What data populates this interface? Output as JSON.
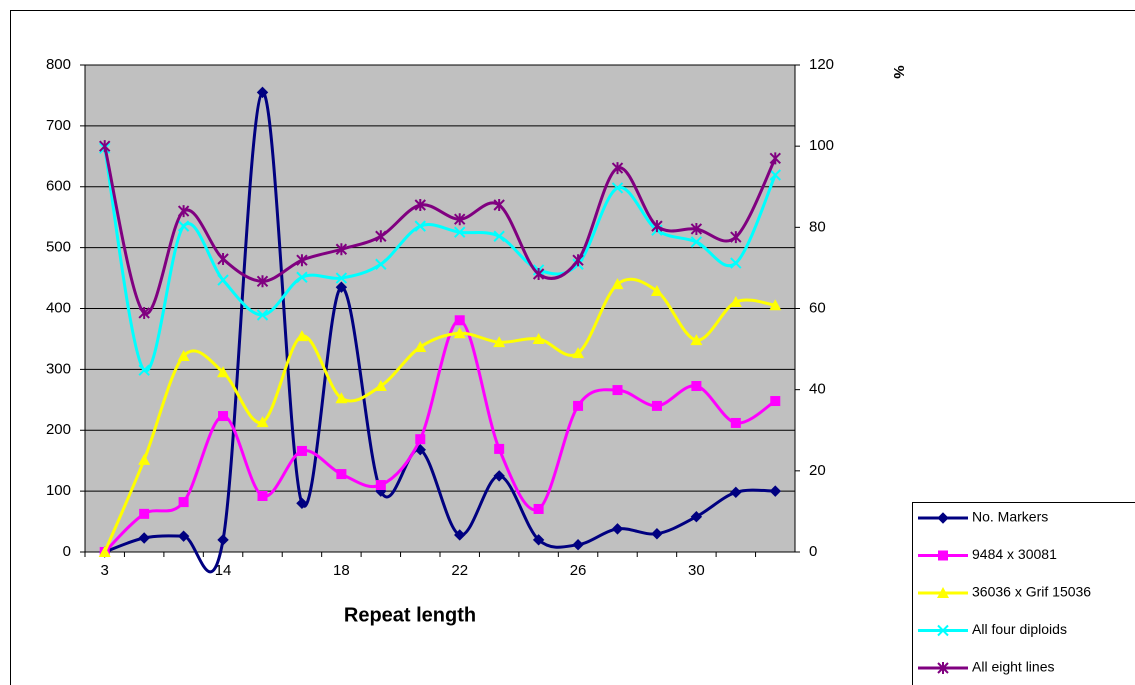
{
  "chart_data": {
    "type": "line",
    "xlabel": "Repeat length",
    "y2label": "%",
    "categories": [
      "3",
      null,
      null,
      "14",
      null,
      null,
      "18",
      null,
      null,
      "22",
      null,
      null,
      "26",
      null,
      null,
      "30",
      null,
      null
    ],
    "ylim": [
      0,
      800
    ],
    "yticks": [
      0,
      100,
      200,
      300,
      400,
      500,
      600,
      700,
      800
    ],
    "y2lim": [
      0,
      120
    ],
    "y2ticks": [
      0,
      20,
      40,
      60,
      80,
      100,
      120
    ],
    "grid": true,
    "legend": "bottom-right",
    "series": [
      {
        "name": "No. Markers",
        "color": "#000080",
        "marker": "diamond",
        "axis": "y",
        "values": [
          0,
          23,
          26,
          20,
          755,
          80,
          435,
          100,
          168,
          28,
          125,
          20,
          12,
          38,
          30,
          58,
          98,
          100
        ]
      },
      {
        "name": "9484 x 30081",
        "color": "#ff00ff",
        "marker": "square",
        "axis": "y2",
        "values": [
          0,
          9.4,
          12.3,
          33.5,
          13.8,
          24.9,
          19.2,
          16.5,
          27.8,
          57.1,
          25.4,
          10.6,
          36,
          39.9,
          36,
          40.9,
          31.8,
          37.2
        ]
      },
      {
        "name": "36036 x Grif 15036",
        "color": "#ffff00",
        "marker": "triangle",
        "axis": "y2",
        "values": [
          0,
          22.7,
          48.3,
          44.3,
          32,
          53.2,
          37.9,
          40.9,
          50.5,
          53.9,
          51.7,
          52.5,
          49,
          66,
          64.3,
          52.2,
          61.6,
          60.8
        ]
      },
      {
        "name": "All four diploids",
        "color": "#00ffff",
        "marker": "x",
        "axis": "y2",
        "values": [
          99.5,
          44.8,
          80.3,
          67,
          58.4,
          67.7,
          67.5,
          70.9,
          80.3,
          78.8,
          77.8,
          69.5,
          70.9,
          89.7,
          79.3,
          76.4,
          71.2,
          92.9
        ]
      },
      {
        "name": "All eight lines",
        "color": "#800080",
        "marker": "star",
        "axis": "y2",
        "values": [
          100,
          58.9,
          84,
          72.2,
          66.7,
          71.9,
          74.6,
          77.8,
          85.5,
          82,
          85.5,
          68.5,
          71.9,
          94.6,
          80.3,
          79.6,
          77.6,
          97
        ]
      }
    ]
  }
}
